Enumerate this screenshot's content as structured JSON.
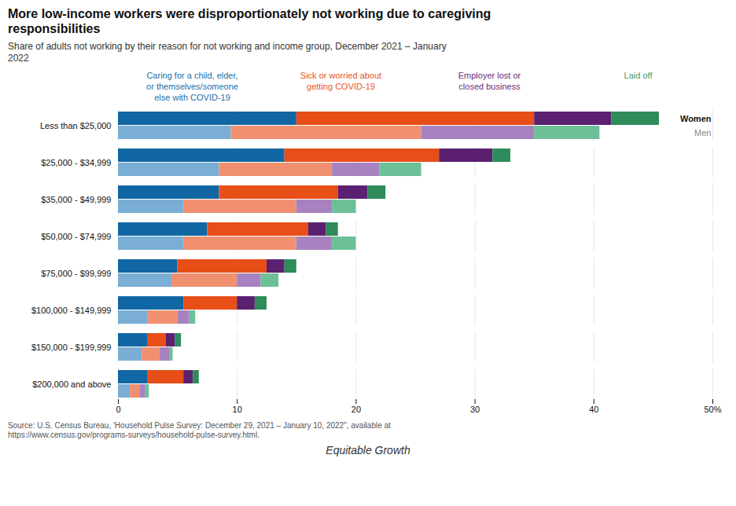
{
  "chart_data": {
    "type": "bar",
    "orientation": "horizontal",
    "stacked": true,
    "title": "More low-income workers were disproportionately not working due to caregiving\nresponsibilities",
    "subtitle": "Share of adults not working by their reason for not working and income group, December 2021 – January\n2022",
    "source": "Source: U.S. Census Bureau, 'Household Pulse Survey: December 29, 2021 – January 10, 2022\", available at\nhttps://www.census.gov/programs-surveys/household-pulse-survey.html.",
    "footer": "Equitable Growth",
    "categories": [
      "Less than $25,000",
      "$25,000 - $34,999",
      "$35,000 - $49,999",
      "$50,000 - $74,999",
      "$75,000 - $99,999",
      "$100,000 - $149,999",
      "$150,000 - $199,999",
      "$200,000 and above"
    ],
    "series": [
      {
        "name": "Caring for a child, elder,\nor themselves/someone\nelse with COVID-19",
        "color": "#1a6fa8",
        "groups": [
          {
            "name": "Women",
            "color": "#1167a3",
            "values": [
              15.0,
              14.0,
              8.5,
              7.5,
              5.0,
              5.5,
              2.5,
              2.5
            ]
          },
          {
            "name": "Men",
            "color": "#7aaed4",
            "values": [
              9.5,
              8.5,
              5.5,
              5.5,
              4.5,
              2.5,
              2.0,
              1.0
            ]
          }
        ]
      },
      {
        "name": "Sick or worried about\ngetting COVID-19",
        "color": "#e8541c",
        "groups": [
          {
            "name": "Women",
            "color": "#e84e18",
            "values": [
              20.0,
              13.0,
              10.0,
              8.5,
              7.5,
              4.5,
              1.5,
              3.0
            ]
          },
          {
            "name": "Men",
            "color": "#f09070",
            "values": [
              16.0,
              9.5,
              9.5,
              9.5,
              5.5,
              2.5,
              1.5,
              0.8
            ]
          }
        ]
      },
      {
        "name": "Employer lost or\nclosed business",
        "color": "#6a2d7e",
        "groups": [
          {
            "name": "Women",
            "color": "#5b2070",
            "values": [
              6.5,
              4.5,
              2.5,
              1.5,
              1.5,
              1.5,
              0.8,
              0.8
            ]
          },
          {
            "name": "Men",
            "color": "#a882c0",
            "values": [
              9.5,
              4.0,
              3.0,
              3.0,
              2.0,
              1.0,
              0.8,
              0.5
            ]
          }
        ]
      },
      {
        "name": "Laid off",
        "color": "#3a9e6e",
        "groups": [
          {
            "name": "Women",
            "color": "#2e8b5a",
            "values": [
              4.0,
              1.5,
              1.5,
              1.0,
              1.0,
              1.0,
              0.5,
              0.5
            ]
          },
          {
            "name": "Men",
            "color": "#6dbf98",
            "values": [
              5.5,
              3.5,
              2.0,
              2.0,
              1.5,
              0.5,
              0.3,
              0.3
            ]
          }
        ]
      }
    ],
    "xlim": [
      0,
      50
    ],
    "xticks": [
      0,
      10,
      20,
      30,
      40,
      {
        "value": 50,
        "label": "50%"
      }
    ],
    "grid": true,
    "legend": "top"
  }
}
